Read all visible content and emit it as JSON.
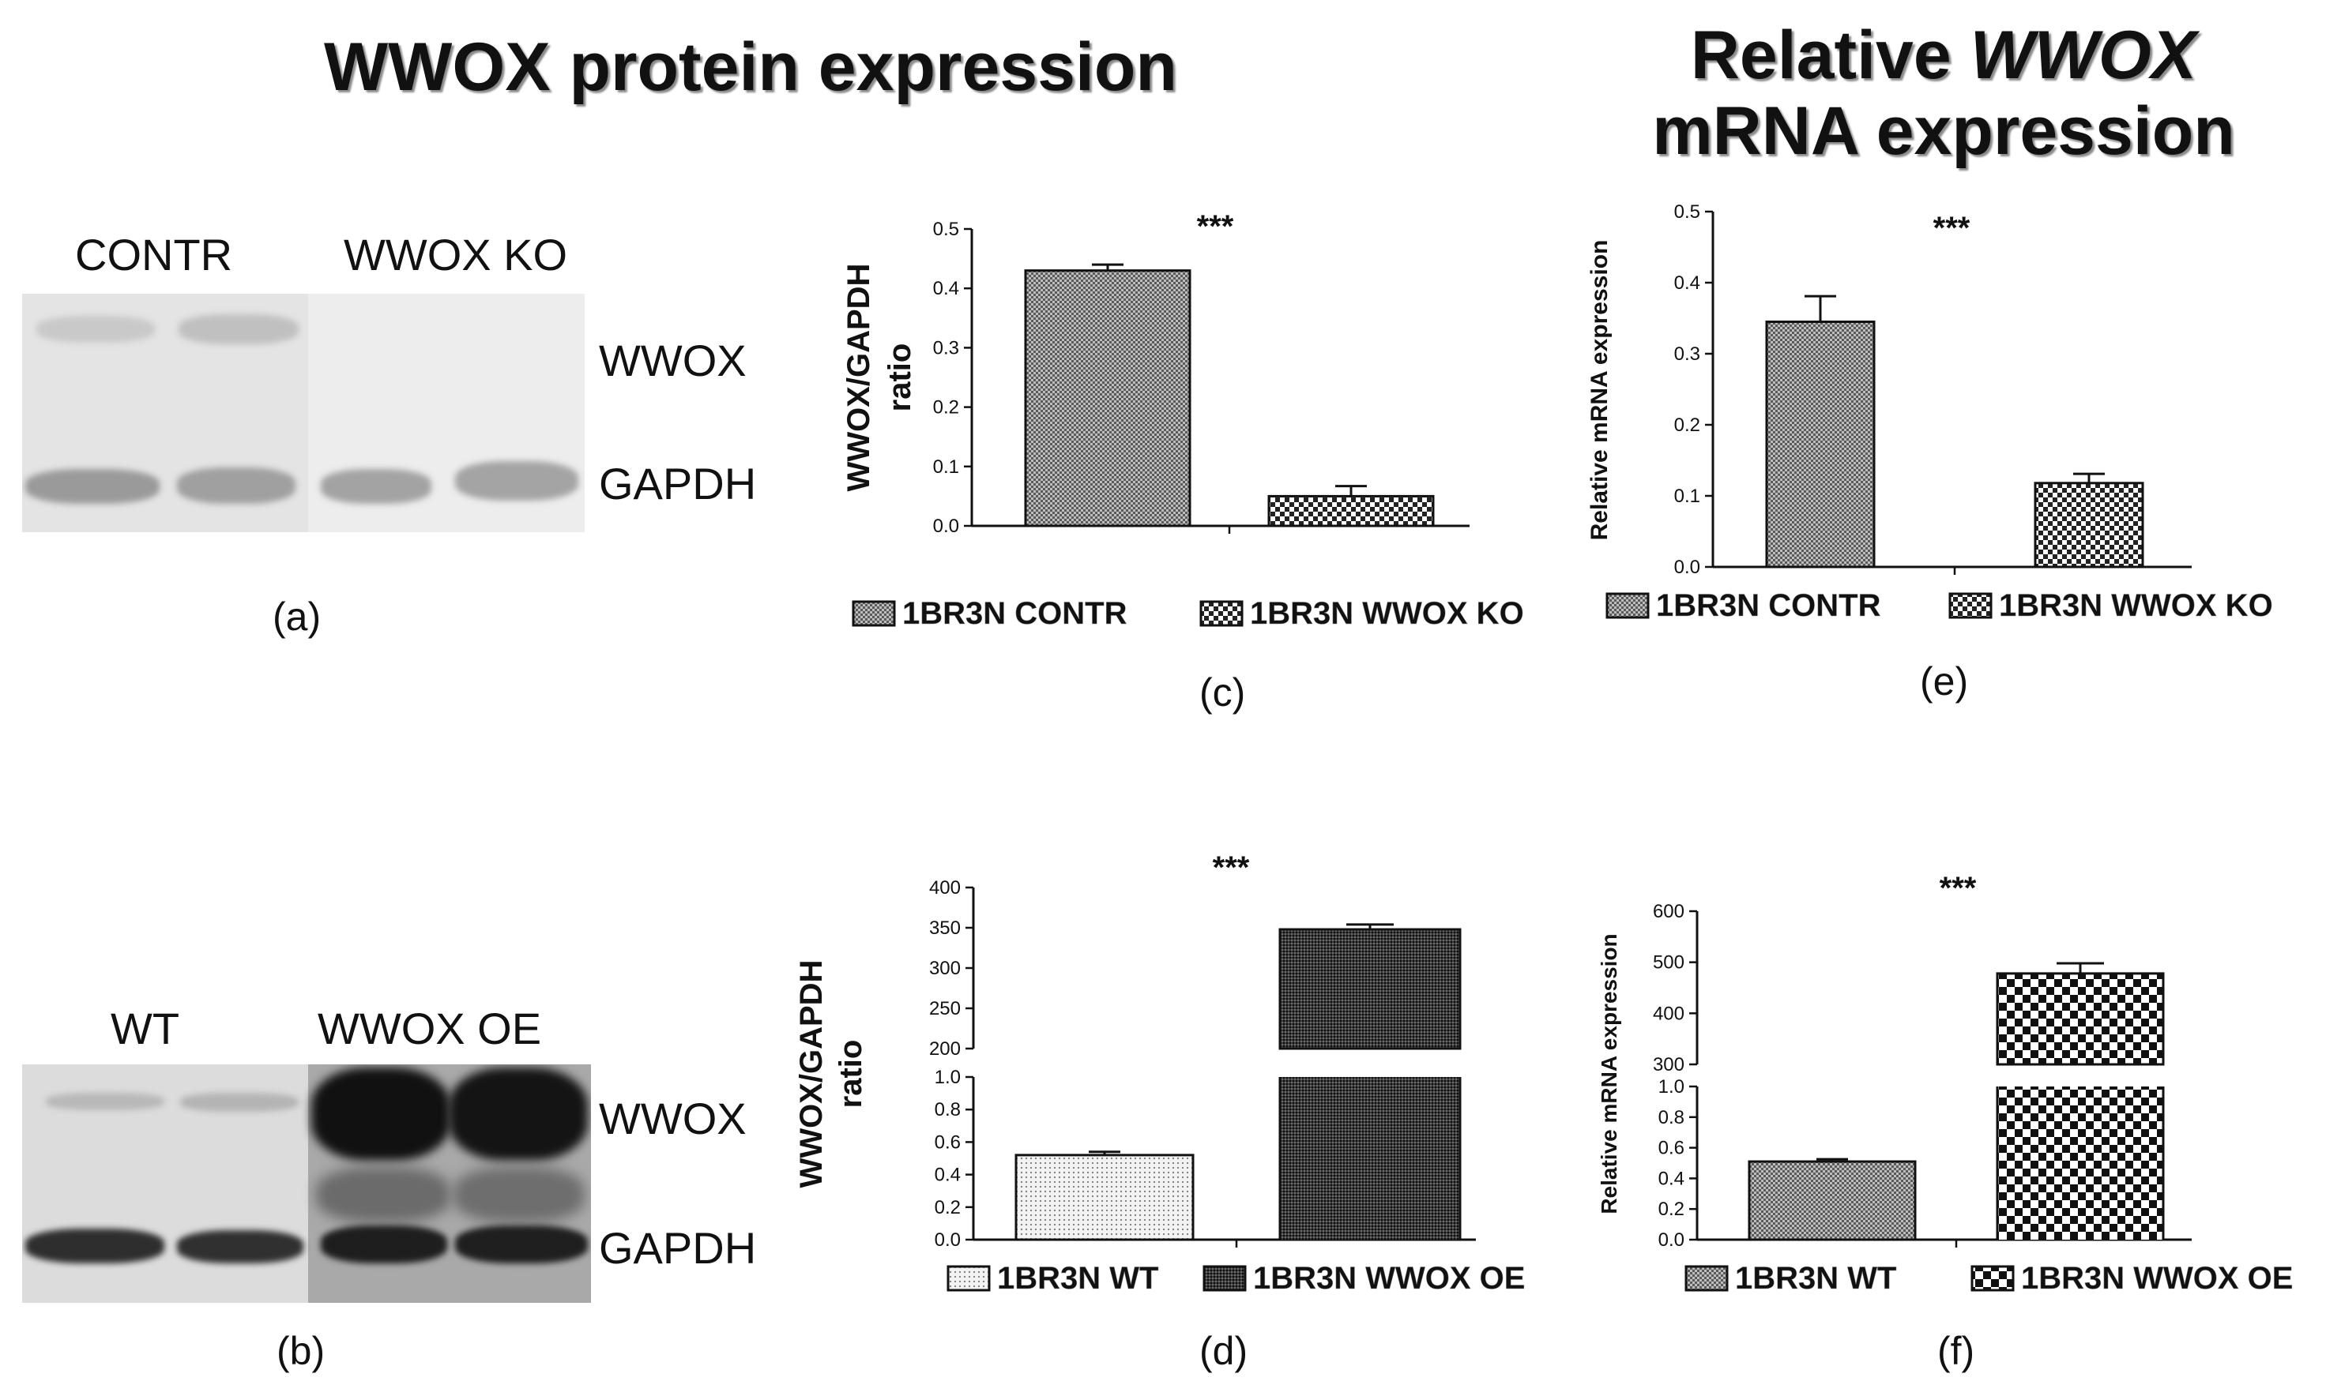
{
  "titles": {
    "protein": "WWOX protein expression",
    "mrna_line1_prefix": "Relative ",
    "mrna_line1_italic": "WWOX",
    "mrna_line2": "mRNA expression"
  },
  "blots": {
    "a": {
      "lane_labels": [
        "CONTR",
        "WWOX KO"
      ],
      "band_labels": [
        "WWOX",
        "GAPDH"
      ],
      "panel_label": "(a)"
    },
    "b": {
      "lane_labels": [
        "WT",
        "WWOX OE"
      ],
      "band_labels": [
        "WWOX",
        "GAPDH"
      ],
      "panel_label": "(b)"
    }
  },
  "chart_data": [
    {
      "id": "c",
      "type": "bar",
      "panel_label": "(c)",
      "categories": [
        "1BR3N CONTR",
        "1BR3N WWOX KO"
      ],
      "values": [
        0.43,
        0.05
      ],
      "errors": [
        0.01,
        0.017
      ],
      "ylabel_line1": "WWOX/GAPDH",
      "ylabel_line2": "ratio",
      "ylim": [
        0,
        0.5
      ],
      "yticks": [
        "0.0",
        "0.1",
        "0.2",
        "0.3",
        "0.4",
        "0.5"
      ],
      "significance": "***",
      "legend_position": "bottom",
      "patterns": [
        "fine",
        "checker"
      ]
    },
    {
      "id": "d",
      "type": "bar",
      "panel_label": "(d)",
      "categories": [
        "1BR3N WT",
        "1BR3N WWOX OE"
      ],
      "values": [
        0.52,
        348
      ],
      "errors": [
        0.02,
        6
      ],
      "ylabel_line1": "WWOX/GAPDH",
      "ylabel_line2": "ratio",
      "broken_axis": {
        "lower": [
          0,
          1.0
        ],
        "upper": [
          200,
          400
        ]
      },
      "yticks_lower": [
        "0.0",
        "0.2",
        "0.4",
        "0.6",
        "0.8",
        "1.0"
      ],
      "yticks_upper": [
        "200",
        "250",
        "300",
        "350",
        "400"
      ],
      "significance": "***",
      "legend_position": "bottom",
      "patterns": [
        "dots",
        "dense"
      ]
    },
    {
      "id": "e",
      "type": "bar",
      "panel_label": "(e)",
      "categories": [
        "1BR3N CONTR",
        "1BR3N WWOX KO"
      ],
      "values": [
        0.345,
        0.118
      ],
      "errors": [
        0.036,
        0.013
      ],
      "ylabel_line1": "Relative mRNA expression",
      "ylim": [
        0,
        0.5
      ],
      "yticks": [
        "0.0",
        "0.1",
        "0.2",
        "0.3",
        "0.4",
        "0.5"
      ],
      "significance": "***",
      "legend_position": "bottom",
      "patterns": [
        "fine",
        "checker"
      ]
    },
    {
      "id": "f",
      "type": "bar",
      "panel_label": "(f)",
      "categories": [
        "1BR3N WT",
        "1BR3N WWOX OE"
      ],
      "values": [
        0.51,
        478
      ],
      "errors": [
        0.015,
        20
      ],
      "ylabel_line1": "Relative mRNA expression",
      "broken_axis": {
        "lower": [
          0,
          1.0
        ],
        "upper": [
          300,
          600
        ]
      },
      "yticks_lower": [
        "0.0",
        "0.2",
        "0.4",
        "0.6",
        "0.8",
        "1.0"
      ],
      "yticks_upper": [
        "300",
        "400",
        "500",
        "600"
      ],
      "significance": "***",
      "legend_position": "bottom",
      "patterns": [
        "fine",
        "bigchecker"
      ]
    }
  ]
}
